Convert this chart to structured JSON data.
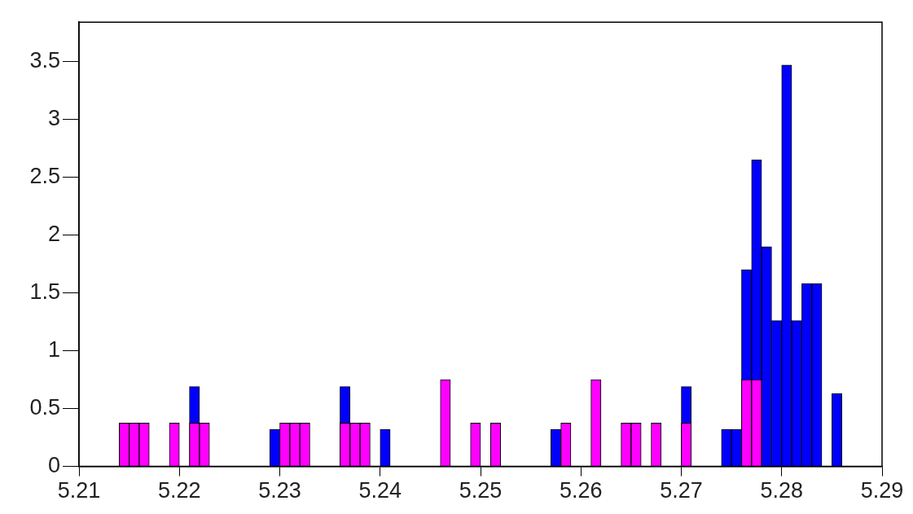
{
  "chart_data": {
    "type": "histogram",
    "bins": [
      5.21,
      5.211,
      5.212,
      5.213,
      5.214,
      5.215,
      5.216,
      5.217,
      5.218,
      5.219,
      5.22,
      5.221,
      5.222,
      5.223,
      5.224,
      5.225,
      5.226,
      5.227,
      5.228,
      5.229,
      5.23,
      5.231,
      5.232,
      5.233,
      5.234,
      5.235,
      5.236,
      5.237,
      5.238,
      5.239,
      5.24,
      5.241,
      5.242,
      5.243,
      5.244,
      5.245,
      5.246,
      5.247,
      5.248,
      5.249,
      5.25,
      5.251,
      5.252,
      5.253,
      5.254,
      5.255,
      5.256,
      5.257,
      5.258,
      5.259,
      5.26,
      5.261,
      5.262,
      5.263,
      5.264,
      5.265,
      5.266,
      5.267,
      5.268,
      5.269,
      5.27,
      5.271,
      5.272,
      5.273,
      5.274,
      5.275,
      5.276,
      5.277,
      5.278,
      5.279,
      5.28,
      5.281,
      5.282,
      5.283,
      5.284,
      5.285,
      5.286,
      5.287,
      5.288,
      5.289,
      5.29
    ],
    "series": [
      {
        "color": "#0000ff",
        "values": [
          0,
          0,
          0,
          0,
          null,
          null,
          null,
          0,
          0,
          null,
          0,
          0.69,
          null,
          0,
          0,
          0,
          0,
          0,
          0,
          0.32,
          null,
          null,
          null,
          0,
          0,
          0,
          0.69,
          null,
          null,
          0,
          0.32,
          0,
          0,
          0,
          0,
          0,
          null,
          0,
          0,
          null,
          0,
          null,
          0,
          0,
          0,
          0,
          0,
          0.32,
          null,
          0,
          0,
          null,
          0,
          0,
          null,
          null,
          0,
          null,
          0,
          0,
          0.69,
          0,
          0,
          0,
          0.32,
          0.32,
          1.7,
          2.65,
          1.9,
          1.26,
          3.47,
          1.26,
          1.58,
          1.58,
          0,
          0.63,
          0,
          0,
          0,
          0
        ]
      },
      {
        "color": "#ff00ff",
        "values": [
          0,
          0,
          0,
          0,
          0.375,
          0.375,
          0.375,
          0,
          0,
          0.375,
          0,
          0.375,
          0.375,
          0,
          0,
          0,
          0,
          0,
          0,
          0,
          0.375,
          0.375,
          0.375,
          0,
          0,
          0,
          0.375,
          0.375,
          0.375,
          0,
          0,
          0,
          0,
          0,
          0,
          0,
          0.75,
          0,
          0,
          0.375,
          0,
          0.375,
          0,
          0,
          0,
          0,
          0,
          0,
          0.375,
          0,
          0,
          0.75,
          0,
          0,
          0.375,
          0.375,
          0,
          0.375,
          0,
          0,
          0.375,
          0,
          0,
          0,
          0,
          0,
          0.75,
          0.75,
          0,
          0,
          0,
          0,
          0,
          0,
          0,
          0,
          0,
          0,
          0,
          0
        ]
      }
    ],
    "xlim": [
      5.21,
      5.29
    ],
    "xticks": [
      5.21,
      5.22,
      5.23,
      5.24,
      5.25,
      5.26,
      5.27,
      5.28,
      5.29
    ],
    "ylim": [
      0,
      3.84
    ],
    "yticks": [
      0,
      0.5,
      1,
      1.5,
      2,
      2.5,
      3,
      3.5
    ],
    "grid": false,
    "legend": false
  }
}
